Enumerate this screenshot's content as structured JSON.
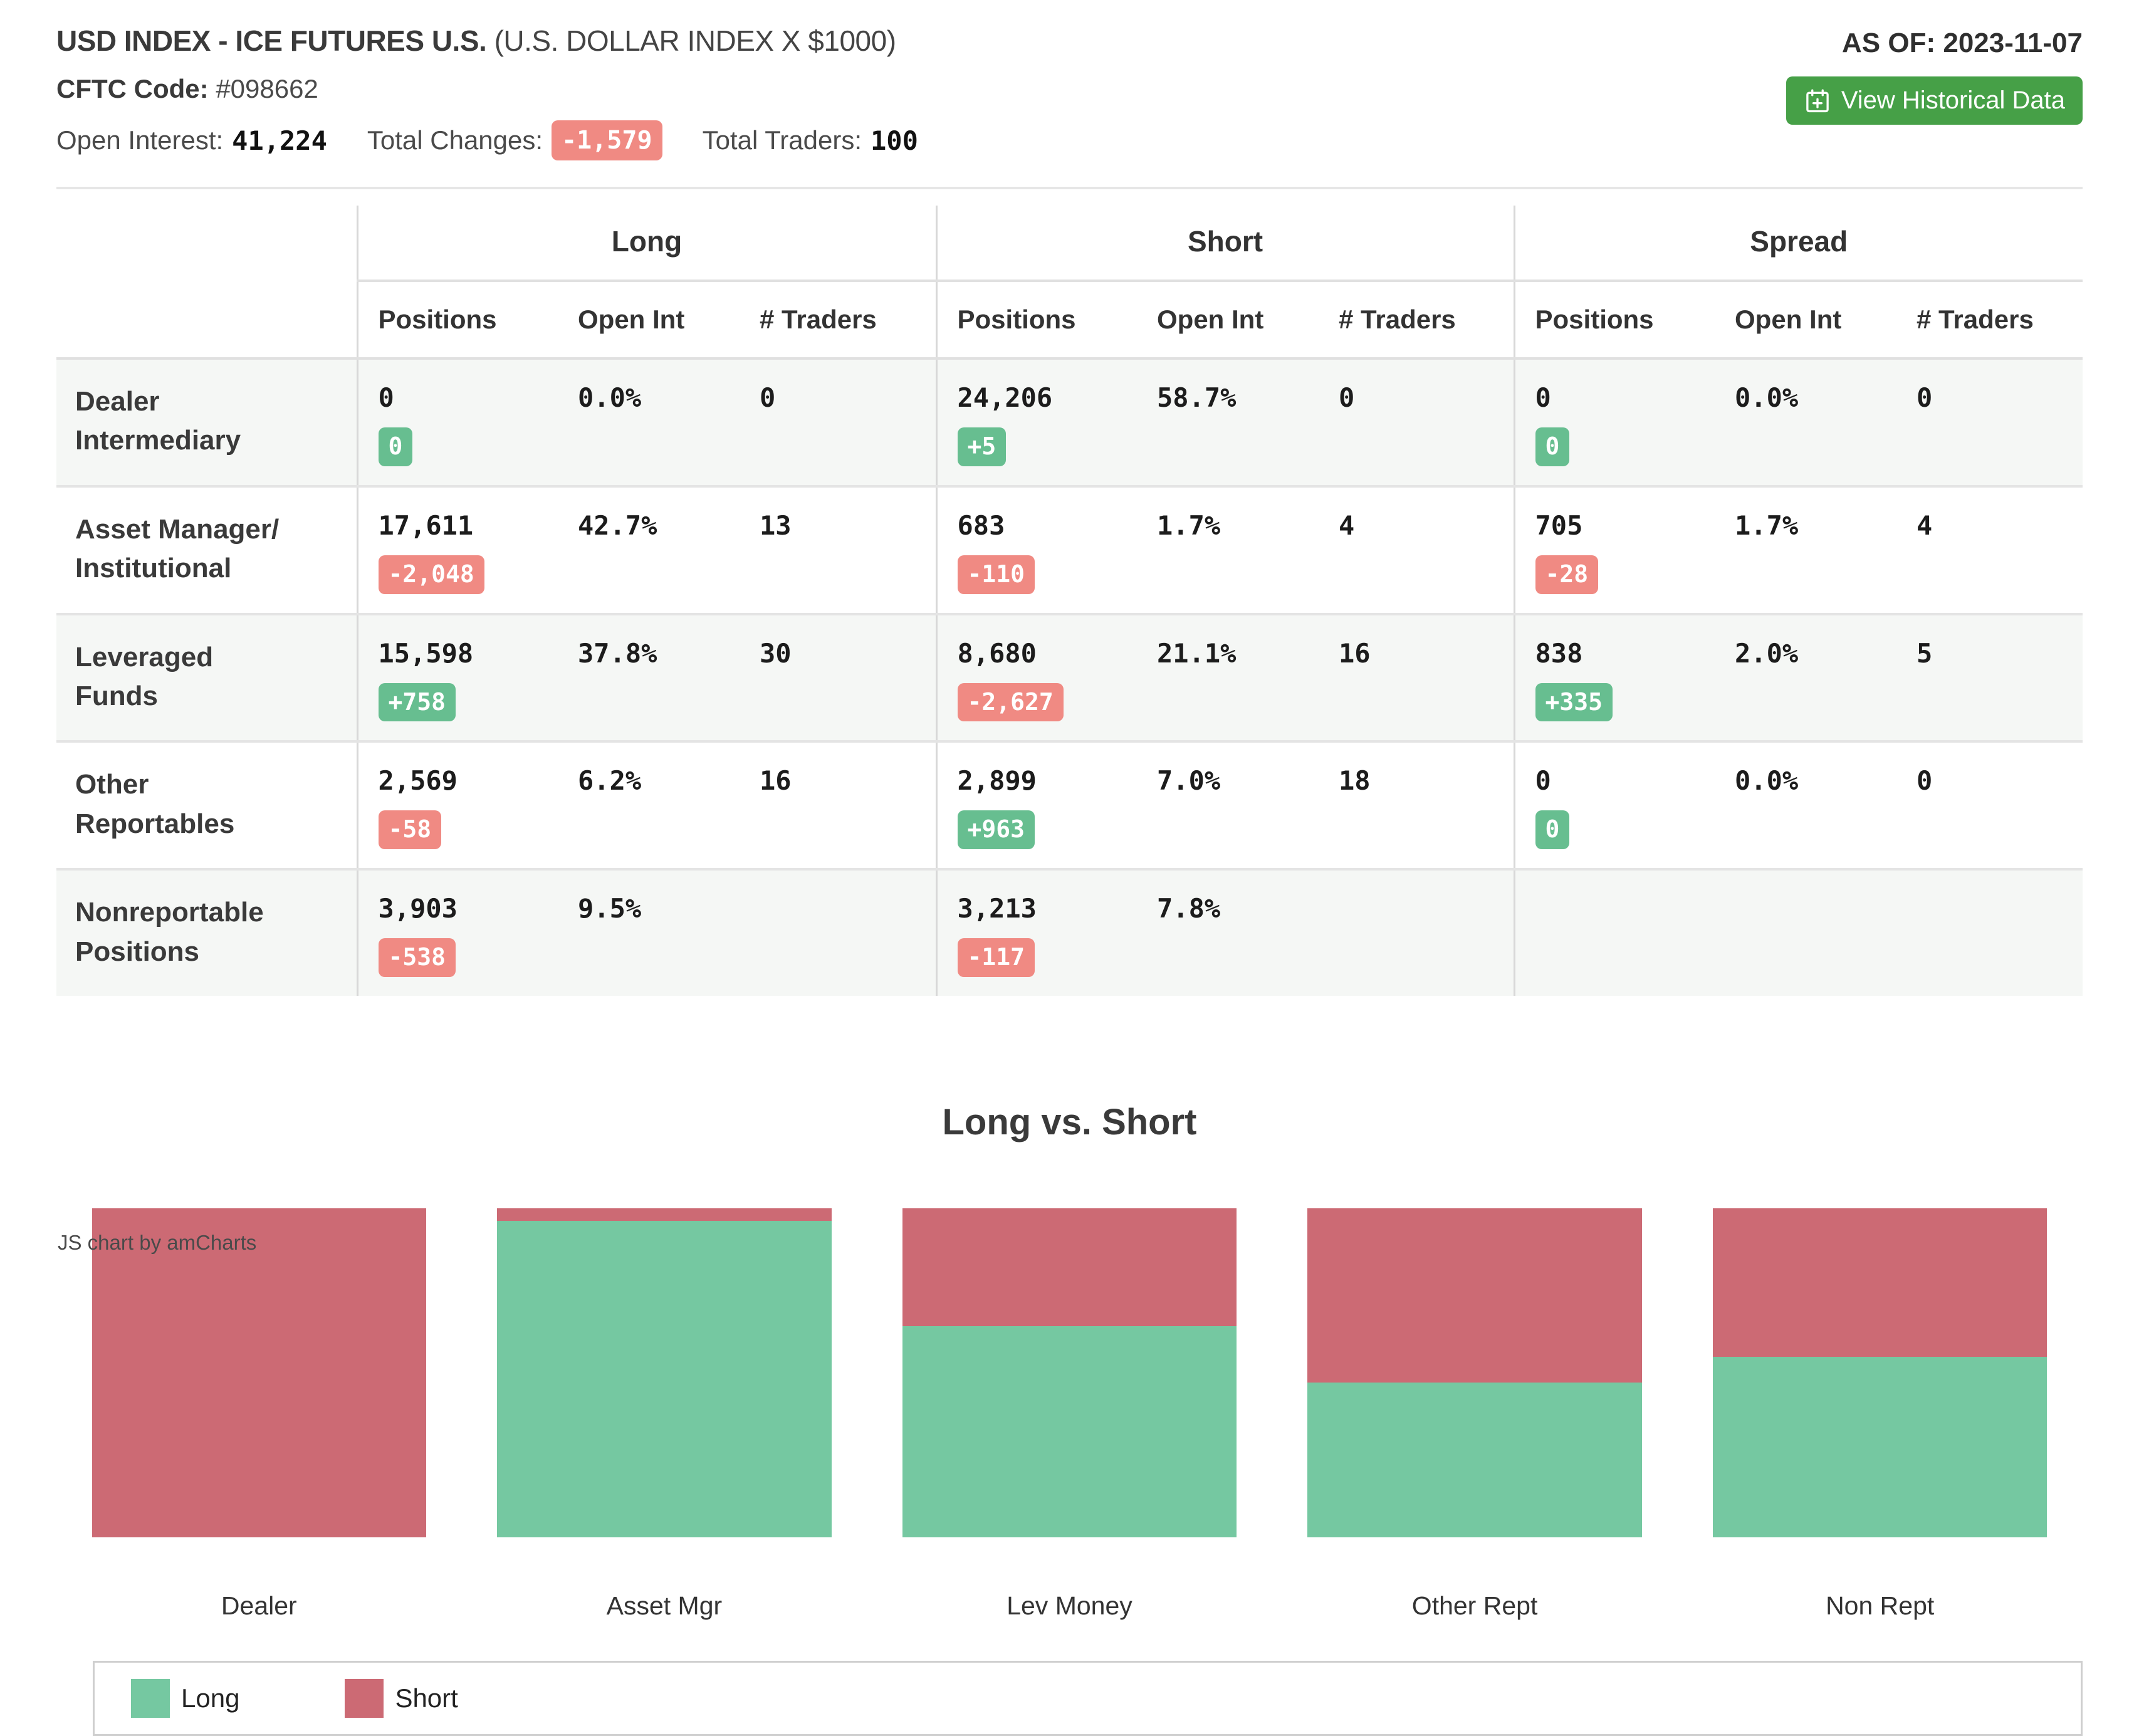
{
  "header": {
    "title_bold": "USD INDEX - ICE FUTURES U.S.",
    "title_normal": "(U.S. DOLLAR INDEX X $1000)",
    "cftc_label": "CFTC Code:",
    "cftc_value": "#098662",
    "open_interest_label": "Open Interest:",
    "open_interest_value": "41,224",
    "total_changes_label": "Total Changes:",
    "total_changes_value": "-1,579",
    "total_traders_label": "Total Traders:",
    "total_traders_value": "100",
    "as_of": "AS OF: 2023-11-07",
    "view_historical_label": "View Historical Data"
  },
  "table": {
    "groups": [
      "Long",
      "Short",
      "Spread"
    ],
    "columns": [
      "Positions",
      "Open Int",
      "# Traders"
    ],
    "rows": [
      {
        "label1": "Dealer",
        "label2": "Intermediary",
        "long": {
          "positions": "0",
          "change": "0",
          "open_int": "0.0%",
          "traders": "0"
        },
        "short": {
          "positions": "24,206",
          "change": "+5",
          "open_int": "58.7%",
          "traders": "0"
        },
        "spread": {
          "positions": "0",
          "change": "0",
          "open_int": "0.0%",
          "traders": "0"
        }
      },
      {
        "label1": "Asset Manager/",
        "label2": "Institutional",
        "long": {
          "positions": "17,611",
          "change": "-2,048",
          "open_int": "42.7%",
          "traders": "13"
        },
        "short": {
          "positions": "683",
          "change": "-110",
          "open_int": "1.7%",
          "traders": "4"
        },
        "spread": {
          "positions": "705",
          "change": "-28",
          "open_int": "1.7%",
          "traders": "4"
        }
      },
      {
        "label1": "Leveraged",
        "label2": "Funds",
        "long": {
          "positions": "15,598",
          "change": "+758",
          "open_int": "37.8%",
          "traders": "30"
        },
        "short": {
          "positions": "8,680",
          "change": "-2,627",
          "open_int": "21.1%",
          "traders": "16"
        },
        "spread": {
          "positions": "838",
          "change": "+335",
          "open_int": "2.0%",
          "traders": "5"
        }
      },
      {
        "label1": "Other",
        "label2": "Reportables",
        "long": {
          "positions": "2,569",
          "change": "-58",
          "open_int": "6.2%",
          "traders": "16"
        },
        "short": {
          "positions": "2,899",
          "change": "+963",
          "open_int": "7.0%",
          "traders": "18"
        },
        "spread": {
          "positions": "0",
          "change": "0",
          "open_int": "0.0%",
          "traders": "0"
        }
      },
      {
        "label1": "Nonreportable",
        "label2": "Positions",
        "long": {
          "positions": "3,903",
          "change": "-538",
          "open_int": "9.5%",
          "traders": ""
        },
        "short": {
          "positions": "3,213",
          "change": "-117",
          "open_int": "7.8%",
          "traders": ""
        }
      }
    ]
  },
  "chart_data": {
    "type": "bar",
    "stacked": true,
    "normalized": "100% stacked column",
    "title": "Long vs. Short",
    "categories": [
      "Dealer",
      "Asset Mgr",
      "Lev Money",
      "Other Rept",
      "Non Rept"
    ],
    "series": [
      {
        "name": "Long",
        "values": [
          0,
          17611,
          15598,
          2569,
          3903
        ]
      },
      {
        "name": "Short",
        "values": [
          24206,
          683,
          8680,
          2899,
          3213
        ]
      }
    ],
    "legend_position": "bottom",
    "grid": false,
    "watermark": "JS chart by amCharts"
  },
  "colors": {
    "long_green": "#75C8A1",
    "short_red": "#CC6A74",
    "badge_positive": "#67BE90",
    "badge_negative": "#F08A83",
    "button_green": "#46A047"
  }
}
